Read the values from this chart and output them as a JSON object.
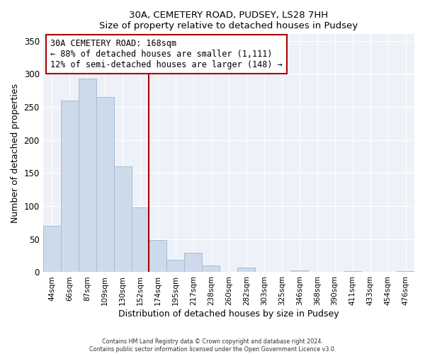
{
  "title": "30A, CEMETERY ROAD, PUDSEY, LS28 7HH",
  "subtitle": "Size of property relative to detached houses in Pudsey",
  "xlabel": "Distribution of detached houses by size in Pudsey",
  "ylabel": "Number of detached properties",
  "bar_labels": [
    "44sqm",
    "66sqm",
    "87sqm",
    "109sqm",
    "130sqm",
    "152sqm",
    "174sqm",
    "195sqm",
    "217sqm",
    "238sqm",
    "260sqm",
    "282sqm",
    "303sqm",
    "325sqm",
    "346sqm",
    "368sqm",
    "390sqm",
    "411sqm",
    "433sqm",
    "454sqm",
    "476sqm"
  ],
  "bar_values": [
    70,
    260,
    293,
    265,
    160,
    98,
    49,
    19,
    29,
    10,
    0,
    7,
    0,
    0,
    3,
    0,
    0,
    2,
    0,
    0,
    2
  ],
  "bar_color": "#cddaeb",
  "bar_edge_color": "#a8bcd4",
  "vline_index": 6,
  "annotation_title": "30A CEMETERY ROAD: 168sqm",
  "annotation_line1": "← 88% of detached houses are smaller (1,111)",
  "annotation_line2": "12% of semi-detached houses are larger (148) →",
  "vline_color": "#aa0000",
  "bg_color": "#eef2f8",
  "ylim": [
    0,
    360
  ],
  "yticks": [
    0,
    50,
    100,
    150,
    200,
    250,
    300,
    350
  ],
  "footnote1": "Contains HM Land Registry data © Crown copyright and database right 2024.",
  "footnote2": "Contains public sector information licensed under the Open Government Licence v3.0."
}
